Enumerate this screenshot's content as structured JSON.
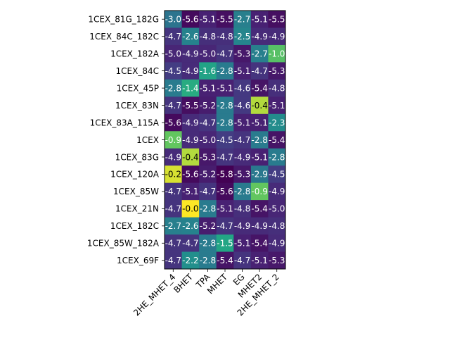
{
  "chart_data": {
    "type": "heatmap",
    "title": "",
    "xlabel": "",
    "ylabel": "",
    "colormap": "viridis",
    "value_range": [
      -5.8,
      0.0
    ],
    "grid": false,
    "rows": [
      "1CEX_81G_182G",
      "1CEX_84C_182C",
      "1CEX_182A",
      "1CEX_84C",
      "1CEX_45P",
      "1CEX_83N",
      "1CEX_83A_115A",
      "1CEX",
      "1CEX_83G",
      "1CEX_120A",
      "1CEX_85W",
      "1CEX_21N",
      "1CEX_182C",
      "1CEX_85W_182A",
      "1CEX_69F"
    ],
    "columns": [
      "2HE_MHET_4",
      "BHET",
      "TPA",
      "MHET",
      "EG",
      "MHET2",
      "2HE_MHET_2"
    ],
    "values": [
      [
        -3.0,
        -5.6,
        -5.1,
        -5.5,
        -2.7,
        -5.1,
        -5.5
      ],
      [
        -4.7,
        -2.6,
        -4.8,
        -4.8,
        -2.5,
        -4.9,
        -4.9
      ],
      [
        -5.0,
        -4.9,
        -5.0,
        -4.7,
        -5.3,
        -2.7,
        -1.0
      ],
      [
        -4.5,
        -4.9,
        -1.6,
        -2.8,
        -5.1,
        -4.7,
        -5.3
      ],
      [
        -2.8,
        -1.4,
        -5.1,
        -5.1,
        -4.6,
        -5.4,
        -4.8
      ],
      [
        -4.7,
        -5.5,
        -5.2,
        -2.8,
        -4.6,
        -0.4,
        -5.1
      ],
      [
        -5.6,
        -4.9,
        -4.7,
        -2.8,
        -5.1,
        -5.1,
        -2.3
      ],
      [
        -0.9,
        -4.9,
        -5.0,
        -4.5,
        -4.7,
        -2.8,
        -5.4
      ],
      [
        -4.9,
        -0.4,
        -5.3,
        -4.7,
        -4.9,
        -5.1,
        -2.8
      ],
      [
        -0.2,
        -5.6,
        -5.2,
        -5.8,
        -5.3,
        -2.9,
        -4.5
      ],
      [
        -4.7,
        -5.1,
        -4.7,
        -5.6,
        -2.8,
        -0.9,
        -4.9
      ],
      [
        -4.7,
        -0.0,
        -2.8,
        -5.1,
        -4.8,
        -5.4,
        -5.0
      ],
      [
        -2.7,
        -2.6,
        -5.2,
        -4.7,
        -4.9,
        -4.9,
        -4.8
      ],
      [
        -4.7,
        -4.7,
        -2.8,
        -1.5,
        -5.1,
        -5.4,
        -4.9
      ],
      [
        -4.7,
        -2.2,
        -2.8,
        -5.4,
        -4.7,
        -5.1,
        -5.3
      ]
    ],
    "value_labels": [
      [
        "-3.0",
        "-5.6",
        "-5.1",
        "-5.5",
        "-2.7",
        "-5.1",
        "-5.5"
      ],
      [
        "-4.7",
        "-2.6",
        "-4.8",
        "-4.8",
        "-2.5",
        "-4.9",
        "-4.9"
      ],
      [
        "-5.0",
        "-4.9",
        "-5.0",
        "-4.7",
        "-5.3",
        "-2.7",
        "-1.0"
      ],
      [
        "-4.5",
        "-4.9",
        "-1.6",
        "-2.8",
        "-5.1",
        "-4.7",
        "-5.3"
      ],
      [
        "-2.8",
        "-1.4",
        "-5.1",
        "-5.1",
        "-4.6",
        "-5.4",
        "-4.8"
      ],
      [
        "-4.7",
        "-5.5",
        "-5.2",
        "-2.8",
        "-4.6",
        "-0.4",
        "-5.1"
      ],
      [
        "-5.6",
        "-4.9",
        "-4.7",
        "-2.8",
        "-5.1",
        "-5.1",
        "-2.3"
      ],
      [
        "-0.9",
        "-4.9",
        "-5.0",
        "-4.5",
        "-4.7",
        "-2.8",
        "-5.4"
      ],
      [
        "-4.9",
        "-0.4",
        "-5.3",
        "-4.7",
        "-4.9",
        "-5.1",
        "-2.8"
      ],
      [
        "-0.2",
        "-5.6",
        "-5.2",
        "-5.8",
        "-5.3",
        "-2.9",
        "-4.5"
      ],
      [
        "-4.7",
        "-5.1",
        "-4.7",
        "-5.6",
        "-2.8",
        "-0.9",
        "-4.9"
      ],
      [
        "-4.7",
        "-0.0",
        "-2.8",
        "-5.1",
        "-4.8",
        "-5.4",
        "-5.0"
      ],
      [
        "-2.7",
        "-2.6",
        "-5.2",
        "-4.7",
        "-4.9",
        "-4.9",
        "-4.8"
      ],
      [
        "-4.7",
        "-4.7",
        "-2.8",
        "-1.5",
        "-5.1",
        "-5.4",
        "-4.9"
      ],
      [
        "-4.7",
        "-2.2",
        "-2.8",
        "-5.4",
        "-4.7",
        "-5.1",
        "-5.3"
      ]
    ]
  }
}
